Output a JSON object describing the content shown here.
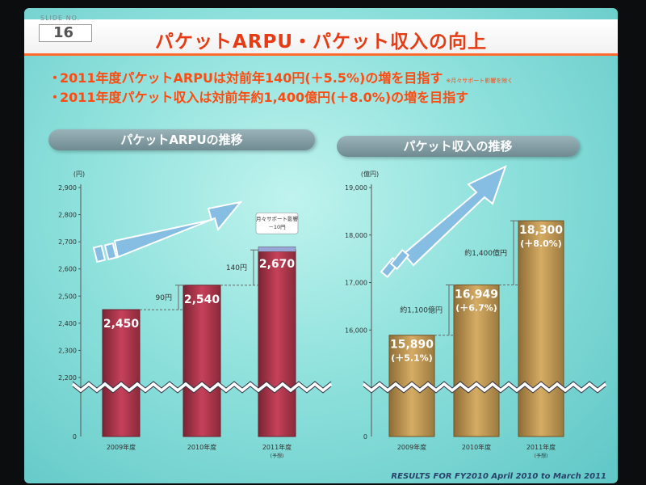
{
  "slide": {
    "number_label": "SLIDE NO.",
    "number": "16",
    "title": "パケットARPU・パケット収入の向上",
    "bullets": [
      {
        "text": "2011年度パケットARPUは対前年140円(＋5.5%)の増を目指す",
        "note": "※月々サポート影響を除く"
      },
      {
        "text": "2011年度パケット収入は対前年約1,400億円(＋8.0%)の増を目指す",
        "note": ""
      }
    ],
    "footer": "RESULTS FOR FY2010 April 2010 to March 2011",
    "colors": {
      "title": "#e53c15",
      "bullet": "#ff4a10",
      "bar_left": "#b5364a",
      "bar_right": "#c9a05a",
      "arrow": "#7fb6dd"
    }
  },
  "chart_data": [
    {
      "type": "bar",
      "title": "パケットARPUの推移",
      "unit": "(円)",
      "categories": [
        "2009年度",
        "2010年度",
        "2011年度"
      ],
      "category_notes": [
        "",
        "",
        "(予想)"
      ],
      "values": [
        2450,
        2540,
        2670
      ],
      "value_labels": [
        "2,450",
        "2,540",
        "2,670"
      ],
      "ylim": [
        2200,
        2900
      ],
      "yticks": [
        2200,
        2300,
        2400,
        2500,
        2600,
        2700,
        2800,
        2900
      ],
      "ytick_labels": [
        "2,200",
        "2,300",
        "2,400",
        "2,500",
        "2,600",
        "2,700",
        "2,800",
        "2,900"
      ],
      "axis_break": true,
      "zero_label": "0",
      "differences": [
        "90円",
        "140円"
      ],
      "annotation": {
        "text": "月々サポート影響",
        "value": "－10円"
      }
    },
    {
      "type": "bar",
      "title": "パケット収入の推移",
      "unit": "(億円)",
      "categories": [
        "2009年度",
        "2010年度",
        "2011年度"
      ],
      "category_notes": [
        "",
        "",
        "(予想)"
      ],
      "values": [
        15890,
        16949,
        18300
      ],
      "value_labels": [
        "15,890",
        "16,949",
        "18,300"
      ],
      "growth_labels": [
        "(＋5.1%)",
        "(＋6.7%)",
        "(＋8.0%)"
      ],
      "ylim": [
        15000,
        19000
      ],
      "yticks": [
        16000,
        17000,
        18000,
        19000
      ],
      "ytick_labels": [
        "16,000",
        "17,000",
        "18,000",
        "19,000"
      ],
      "axis_break": true,
      "zero_label": "0",
      "differences": [
        "約1,100億円",
        "約1,400億円"
      ]
    }
  ]
}
